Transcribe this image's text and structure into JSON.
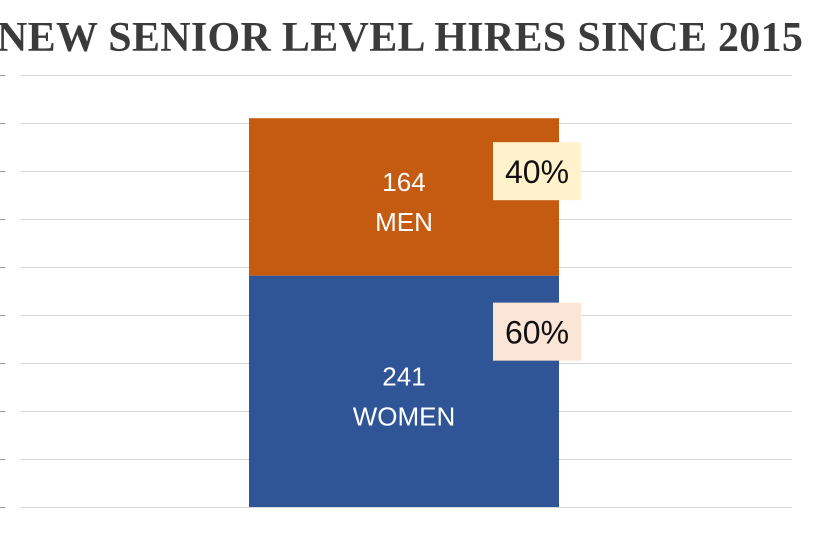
{
  "chart_data": {
    "type": "bar",
    "stacked": true,
    "title": "NEW SENIOR LEVEL HIRES SINCE 2015",
    "categories": [
      ""
    ],
    "series": [
      {
        "name": "WOMEN",
        "values": [
          241
        ],
        "percent_label": "60%",
        "color": "#2f5597",
        "percent_box_color": "#fbe5d6"
      },
      {
        "name": "MEN",
        "values": [
          164
        ],
        "percent_label": "40%",
        "color": "#c55a11",
        "percent_box_color": "#fff2cc"
      }
    ],
    "ylim": [
      0,
      450
    ],
    "y_tick_step": 50,
    "y_tick_labels_visible": false,
    "grid": true,
    "legend": "none"
  }
}
